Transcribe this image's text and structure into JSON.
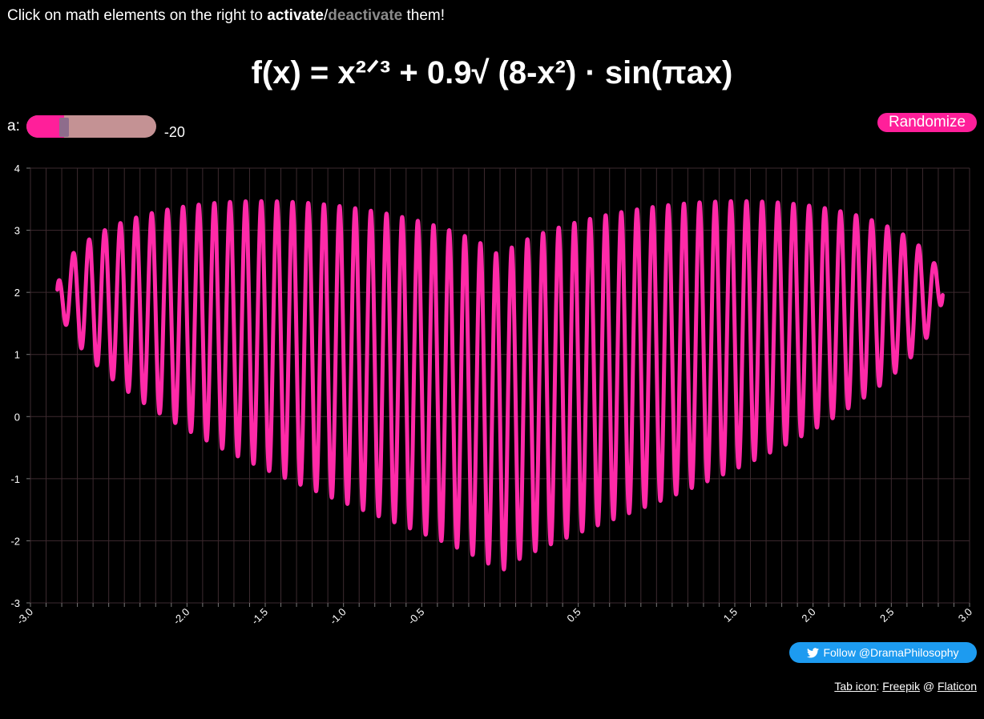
{
  "instructions": {
    "prefix": "Click on math elements on the right to ",
    "activate": "activate",
    "slash": "/",
    "deactivate": "deactivate",
    "suffix": " them!"
  },
  "formula": {
    "lhs": "f(x) = ",
    "term1": "x²ᐟ³",
    "plus": " + ",
    "coef": "0.9",
    "sqrt": "√ (8-x²)",
    "dot": " · ",
    "sin": "sin(πax)"
  },
  "slider": {
    "label": "a:",
    "value_text": "-20",
    "fill_fraction": 0.29
  },
  "randomize_label": "Randomize",
  "follow_label": "Follow @DramaPhilosophy",
  "credit": {
    "tab_icon": "Tab icon",
    "colon": ": ",
    "freepik": "Freepik",
    "at": " @ ",
    "flaticon": "Flaticon"
  },
  "colors": {
    "accent": "#ff1f9a",
    "curve": "#ff2aa8",
    "grid": "#3d2a2f",
    "twitter": "#1d9bf0"
  },
  "icons": [
    "twitter-bird-icon"
  ],
  "chart_data": {
    "type": "line",
    "function": "f(x) = x^(2/3) + 0.9*sqrt(8-x^2)*sin(pi*a*x)",
    "parameter_a": -20,
    "x_domain": [
      -2.828,
      2.828
    ],
    "xlim": [
      -3.0,
      3.0
    ],
    "ylim": [
      -3,
      4
    ],
    "y_ticks": [
      "4",
      "3",
      "2",
      "1",
      "0",
      "-1",
      "-2",
      "-3"
    ],
    "y_tick_values": [
      4,
      3,
      2,
      1,
      0,
      -1,
      -2,
      -3
    ],
    "x_ticks": [
      "-3.0",
      "-2.0",
      "-1.5",
      "-1.0",
      "-0.5",
      "0.5",
      "1.5",
      "2.0",
      "2.5",
      "3.0"
    ],
    "x_tick_values": [
      -3.0,
      -2.0,
      -1.5,
      -1.0,
      -0.5,
      0.5,
      1.5,
      2.0,
      2.5,
      3.0
    ],
    "grid": true
  }
}
